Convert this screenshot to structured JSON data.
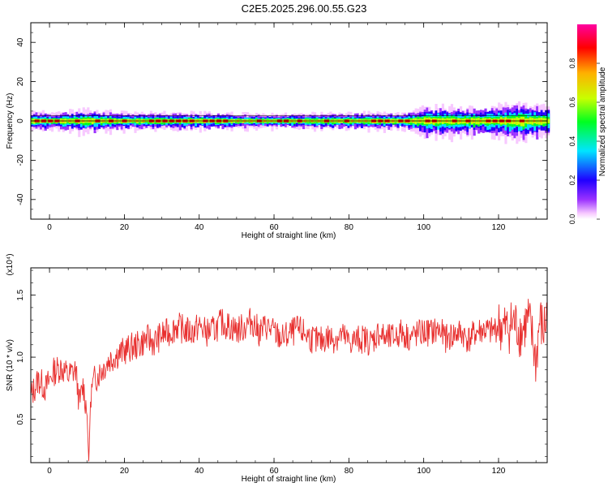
{
  "title": "C2E5.2025.296.00.55.G23",
  "colors": {
    "snr_line": "#e8302f",
    "axis": "#000000",
    "colormap": [
      "#f7c9ff",
      "#9b32ff",
      "#1f00ff",
      "#00e5ff",
      "#00ff20",
      "#c8ff00",
      "#ffb000",
      "#ff0000",
      "#ff00a0"
    ]
  },
  "chart_data": [
    {
      "type": "heatmap",
      "xlabel": "Height of straight line (km)",
      "ylabel": "Frequency (Hz)",
      "xlim": [
        -5,
        133
      ],
      "ylim": [
        -50,
        50
      ],
      "xticks": [
        "0",
        "20",
        "40",
        "60",
        "80",
        "100",
        "120"
      ],
      "yticks": [
        "40",
        "20",
        "0",
        "-20",
        "-40"
      ],
      "colorbar": {
        "label": "Normalized spectral amplitude",
        "range": [
          0,
          1
        ],
        "ticks": [
          "0.0",
          "0.2",
          "0.4",
          "0.6",
          "0.8"
        ]
      },
      "band": {
        "center_frequency_hz": 0,
        "half_width_hz": [
          [
            -5,
            3
          ],
          [
            0,
            2.5
          ],
          [
            10,
            3.5
          ],
          [
            20,
            2.5
          ],
          [
            40,
            2.5
          ],
          [
            60,
            2
          ],
          [
            80,
            2.5
          ],
          [
            95,
            2.5
          ],
          [
            100,
            4.5
          ],
          [
            115,
            4
          ],
          [
            125,
            5.5
          ],
          [
            133,
            4.5
          ]
        ],
        "peak_amplitude": 1
      }
    },
    {
      "type": "line",
      "xlabel": "Height of straight line (km)",
      "ylabel": "SNR (10 * v/v)",
      "y_multiplier": "(x10⁴)",
      "xlim": [
        -5,
        133
      ],
      "ylim": [
        0.15,
        1.72
      ],
      "xticks": [
        "0",
        "20",
        "40",
        "60",
        "80",
        "100",
        "120"
      ],
      "yticks": [
        "1.5",
        "1.0",
        "0.5"
      ],
      "series": [
        {
          "x": [
            -5,
            -3,
            -1,
            1,
            3,
            5,
            7,
            8,
            9,
            10,
            10.5,
            11,
            12,
            14,
            16,
            18,
            20,
            22,
            24,
            26,
            28,
            30,
            32,
            34,
            36,
            38,
            40,
            42,
            44,
            46,
            48,
            50,
            52,
            54,
            56,
            58,
            60,
            62,
            64,
            66,
            68,
            70,
            72,
            74,
            76,
            78,
            80,
            82,
            84,
            86,
            88,
            90,
            92,
            94,
            96,
            98,
            100,
            102,
            104,
            106,
            108,
            110,
            112,
            114,
            116,
            118,
            120,
            122,
            124,
            126,
            127,
            128,
            129,
            130,
            131,
            132,
            133
          ],
          "y": [
            0.68,
            0.82,
            0.75,
            0.88,
            0.92,
            0.85,
            0.9,
            0.62,
            0.78,
            0.55,
            0.15,
            0.7,
            0.82,
            0.9,
            0.98,
            1.02,
            1.05,
            1.08,
            1.1,
            1.15,
            1.12,
            1.18,
            1.2,
            1.25,
            1.22,
            1.2,
            1.25,
            1.2,
            1.22,
            1.28,
            1.25,
            1.22,
            1.24,
            1.3,
            1.2,
            1.25,
            1.2,
            1.15,
            1.18,
            1.22,
            1.2,
            1.15,
            1.12,
            1.16,
            1.15,
            1.18,
            1.12,
            1.14,
            1.15,
            1.12,
            1.2,
            1.14,
            1.16,
            1.2,
            1.16,
            1.18,
            1.2,
            1.2,
            1.22,
            1.15,
            1.18,
            1.2,
            1.14,
            1.2,
            1.22,
            1.2,
            1.25,
            1.22,
            1.28,
            1.2,
            1.25,
            1.3,
            1.15,
            0.95,
            1.3,
            1.2,
            1.35
          ]
        }
      ]
    }
  ]
}
